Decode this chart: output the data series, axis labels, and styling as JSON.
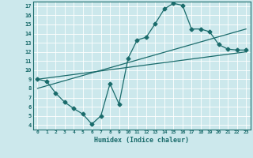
{
  "xlabel": "Humidex (Indice chaleur)",
  "xlim": [
    -0.5,
    23.5
  ],
  "ylim": [
    3.5,
    17.5
  ],
  "xticks": [
    0,
    1,
    2,
    3,
    4,
    5,
    6,
    7,
    8,
    9,
    10,
    11,
    12,
    13,
    14,
    15,
    16,
    17,
    18,
    19,
    20,
    21,
    22,
    23
  ],
  "yticks": [
    4,
    5,
    6,
    7,
    8,
    9,
    10,
    11,
    12,
    13,
    14,
    15,
    16,
    17
  ],
  "bg_color": "#cce8ec",
  "line_color": "#1a6b6b",
  "curve1_x": [
    0,
    1,
    2,
    3,
    4,
    5,
    6,
    7,
    8,
    9,
    10,
    11,
    12,
    13,
    14,
    15,
    16,
    17,
    18,
    19,
    20,
    21,
    22,
    23
  ],
  "curve1_y": [
    9.0,
    8.8,
    7.5,
    6.5,
    5.8,
    5.2,
    4.1,
    5.0,
    8.5,
    6.3,
    11.3,
    13.3,
    13.6,
    15.1,
    16.7,
    17.3,
    17.1,
    14.5,
    14.5,
    14.2,
    12.8,
    12.3,
    12.2,
    12.2
  ],
  "line2_x": [
    0,
    23
  ],
  "line2_y": [
    9.0,
    12.0
  ],
  "line3_x": [
    0,
    23
  ],
  "line3_y": [
    8.0,
    14.5
  ],
  "markersize": 2.5
}
